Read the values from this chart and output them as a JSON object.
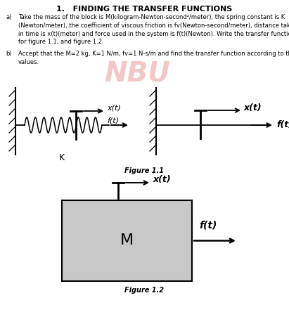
{
  "title": "1.   FINDING THE TRANSFER FUNCTIONS",
  "text_a_label": "a)",
  "text_a_body": "Take the mass of the block is M(kilogram-Newton-second²/meter), the spring constant is K\n(Newton/meter), the coefficient of viscous friction is fv(Newton-second/meter), distance taken\nin time is x(t)(meter) and force used in the system is f(t)(Newton). Write the transfer functions\nfor figure 1.1, and figure 1.2.",
  "text_b_label": "b)",
  "text_b_body": "Accept that the M=2 kg, K=1 N/m, fv=1 N-s/m and find the transfer function according to those\nvalues.",
  "figure_1_1_label": "Figure 1.1",
  "figure_1_2_label": "Figure 1.2",
  "bg_color": "#ffffff",
  "text_color": "#000000",
  "block_fill": "#c8c8c8",
  "block_edge": "#000000",
  "watermark_text": "NBU",
  "watermark_color": "#cc2222",
  "watermark_alpha": 0.25
}
